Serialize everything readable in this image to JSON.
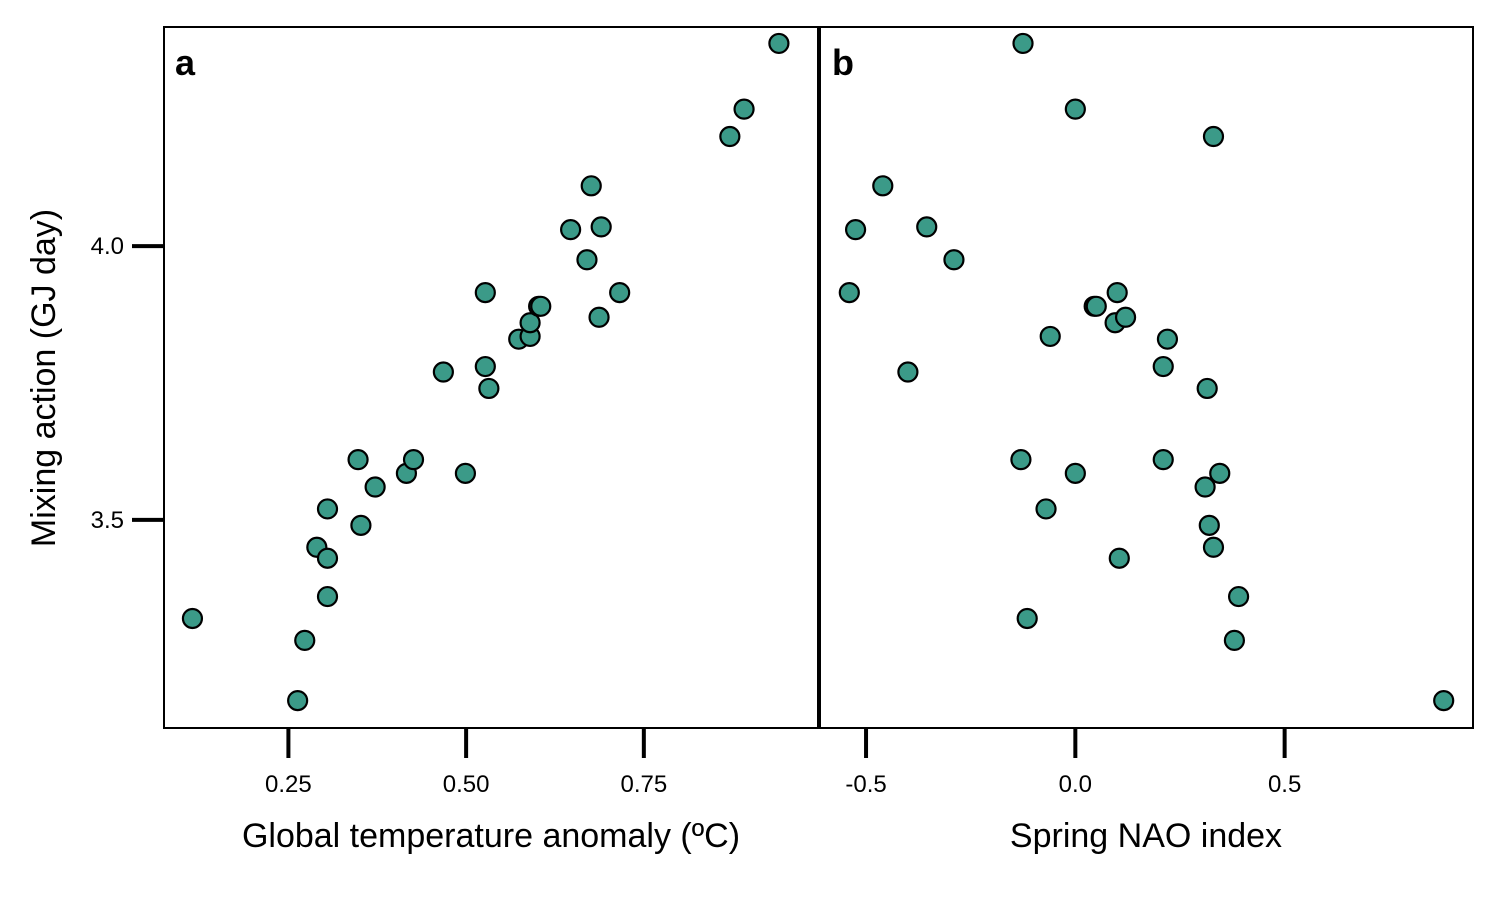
{
  "colors": {
    "point_fill": "#3b9a88",
    "point_stroke": "#000000"
  },
  "y_axis": {
    "label": "Mixing action (GJ day)",
    "ticks": [
      3.5,
      4.0
    ],
    "tick_labels": [
      "3.5",
      "4.0"
    ],
    "range": [
      3.12,
      4.4
    ]
  },
  "chart_data": [
    {
      "type": "scatter",
      "panel_label": "a",
      "xlabel": "Global temperature anomaly (ºC)",
      "ylabel": "Mixing action (GJ day)",
      "xlim": [
        0.075,
        0.995
      ],
      "ylim": [
        3.12,
        4.4
      ],
      "xticks": [
        0.25,
        0.5,
        0.75
      ],
      "xtick_labels": [
        "0.25",
        "0.50",
        "0.75"
      ],
      "yticks": [
        3.5,
        4.0
      ],
      "ytick_labels": [
        "3.5",
        "4.0"
      ],
      "grid": false,
      "points": [
        {
          "x": 0.115,
          "y": 3.32
        },
        {
          "x": 0.263,
          "y": 3.17
        },
        {
          "x": 0.273,
          "y": 3.28
        },
        {
          "x": 0.29,
          "y": 3.45
        },
        {
          "x": 0.305,
          "y": 3.36
        },
        {
          "x": 0.305,
          "y": 3.43
        },
        {
          "x": 0.305,
          "y": 3.52
        },
        {
          "x": 0.348,
          "y": 3.61
        },
        {
          "x": 0.352,
          "y": 3.49
        },
        {
          "x": 0.372,
          "y": 3.56
        },
        {
          "x": 0.416,
          "y": 3.585
        },
        {
          "x": 0.426,
          "y": 3.61
        },
        {
          "x": 0.468,
          "y": 3.77
        },
        {
          "x": 0.499,
          "y": 3.585
        },
        {
          "x": 0.527,
          "y": 3.915
        },
        {
          "x": 0.527,
          "y": 3.78
        },
        {
          "x": 0.532,
          "y": 3.74
        },
        {
          "x": 0.574,
          "y": 3.83
        },
        {
          "x": 0.59,
          "y": 3.835
        },
        {
          "x": 0.59,
          "y": 3.86
        },
        {
          "x": 0.602,
          "y": 3.89
        },
        {
          "x": 0.605,
          "y": 3.89
        },
        {
          "x": 0.647,
          "y": 4.03
        },
        {
          "x": 0.67,
          "y": 3.975
        },
        {
          "x": 0.676,
          "y": 4.11
        },
        {
          "x": 0.687,
          "y": 3.87
        },
        {
          "x": 0.69,
          "y": 4.035
        },
        {
          "x": 0.716,
          "y": 3.915
        },
        {
          "x": 0.871,
          "y": 4.2
        },
        {
          "x": 0.891,
          "y": 4.25
        },
        {
          "x": 0.94,
          "y": 4.37
        }
      ]
    },
    {
      "type": "scatter",
      "panel_label": "b",
      "xlabel": "Spring NAO index",
      "ylabel": "",
      "xlim": [
        -0.61,
        0.95
      ],
      "ylim": [
        3.12,
        4.4
      ],
      "xticks": [
        -0.5,
        0.0,
        0.5
      ],
      "xtick_labels": [
        "-0.5",
        "0.0",
        "0.5"
      ],
      "grid": false,
      "points": [
        {
          "x": -0.54,
          "y": 3.915
        },
        {
          "x": -0.525,
          "y": 4.03
        },
        {
          "x": -0.46,
          "y": 4.11
        },
        {
          "x": -0.4,
          "y": 3.77
        },
        {
          "x": -0.355,
          "y": 4.035
        },
        {
          "x": -0.29,
          "y": 3.975
        },
        {
          "x": -0.13,
          "y": 3.61
        },
        {
          "x": -0.125,
          "y": 4.37
        },
        {
          "x": -0.115,
          "y": 3.32
        },
        {
          "x": -0.07,
          "y": 3.52
        },
        {
          "x": -0.06,
          "y": 3.835
        },
        {
          "x": 0.0,
          "y": 4.25
        },
        {
          "x": 0.0,
          "y": 3.585
        },
        {
          "x": 0.045,
          "y": 3.89
        },
        {
          "x": 0.05,
          "y": 3.89
        },
        {
          "x": 0.095,
          "y": 3.86
        },
        {
          "x": 0.1,
          "y": 3.915
        },
        {
          "x": 0.105,
          "y": 3.43
        },
        {
          "x": 0.12,
          "y": 3.87
        },
        {
          "x": 0.21,
          "y": 3.78
        },
        {
          "x": 0.21,
          "y": 3.61
        },
        {
          "x": 0.22,
          "y": 3.83
        },
        {
          "x": 0.31,
          "y": 3.56
        },
        {
          "x": 0.315,
          "y": 3.74
        },
        {
          "x": 0.32,
          "y": 3.49
        },
        {
          "x": 0.33,
          "y": 3.45
        },
        {
          "x": 0.33,
          "y": 4.2
        },
        {
          "x": 0.345,
          "y": 3.585
        },
        {
          "x": 0.38,
          "y": 3.28
        },
        {
          "x": 0.39,
          "y": 3.36
        },
        {
          "x": 0.88,
          "y": 3.17
        }
      ]
    }
  ]
}
